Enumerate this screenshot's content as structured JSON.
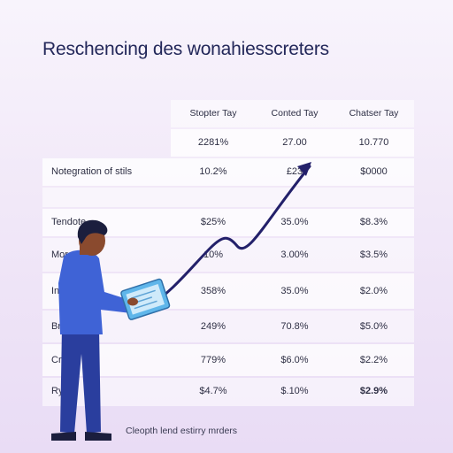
{
  "title": "Reschencing des wonahiesscreters",
  "table": {
    "headers": [
      "Stopter Tay",
      "Conted Tay",
      "Chatser Tay"
    ],
    "rows": [
      {
        "label": "",
        "values": [
          "2281%",
          "27.00",
          "10.770"
        ]
      },
      {
        "label": "Notegration of stils",
        "values": [
          "10.2%",
          "£23",
          "$0000"
        ]
      },
      {
        "label": "",
        "values": [
          "",
          "",
          ""
        ]
      },
      {
        "label": "Tendote",
        "values": [
          "$25%",
          "35.0%",
          "$8.3%"
        ]
      },
      {
        "label": "More",
        "values": [
          "10%",
          "3.00%",
          "$3.5%"
        ]
      },
      {
        "label": "Ing",
        "values": [
          "358%",
          "35.0%",
          "$2.0%"
        ]
      },
      {
        "label": "Br",
        "values": [
          "249%",
          "70.8%",
          "$5.0%"
        ]
      },
      {
        "label": "Cr",
        "values": [
          "779%",
          "$6.0%",
          "$2.2%"
        ]
      },
      {
        "label": "Rys",
        "values": [
          "$4.7%",
          "$.10%",
          "$2.9%"
        ]
      }
    ]
  },
  "caption": "Cleopth lend estirry mrders",
  "colors": {
    "title": "#23285a",
    "trend_line": "#23206a",
    "shirt": "#3f63d6",
    "pants": "#2a3e9e",
    "skin": "#8a4a2e",
    "hair": "#1b1e3d",
    "tablet": "#5fb6ea"
  },
  "illustration": {
    "figure": "person-holding-tablet",
    "arrow": "upward-trend-arrow"
  }
}
